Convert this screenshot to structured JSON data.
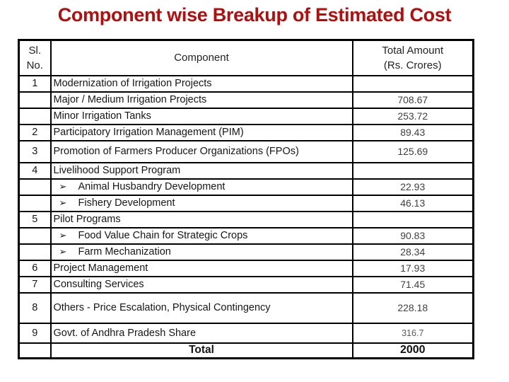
{
  "title": "Component wise Breakup of Estimated Cost",
  "colors": {
    "title_red": "#b30d0d",
    "border_black": "#000000",
    "body_text": "#161616",
    "amount_gray": "#3f3f3f",
    "background": "#ffffff"
  },
  "table": {
    "header": {
      "sl_no": "Sl.\nNo.",
      "component": "Component",
      "amount": "Total Amount\n(Rs. Crores)"
    },
    "rows": [
      {
        "no": "1",
        "bullet": "",
        "component": "Modernization of Irrigation Projects",
        "amount": ""
      },
      {
        "no": "",
        "bullet": "",
        "component": "Major / Medium Irrigation Projects",
        "amount": "708.67"
      },
      {
        "no": "",
        "bullet": "",
        "component": "Minor Irrigation Tanks",
        "amount": "253.72"
      },
      {
        "no": "2",
        "bullet": "",
        "component": "Participatory Irrigation Management (PIM)",
        "amount": "89.43"
      },
      {
        "no": "3",
        "bullet": "",
        "component": "Promotion of Farmers Producer Organizations (FPOs)",
        "amount": "125.69"
      },
      {
        "no": "4",
        "bullet": "",
        "component": "Livelihood Support Program",
        "amount": ""
      },
      {
        "no": "",
        "bullet": "➢",
        "component": "Animal Husbandry Development",
        "amount": "22.93"
      },
      {
        "no": "",
        "bullet": "➢",
        "component": "Fishery Development",
        "amount": "46.13"
      },
      {
        "no": "5",
        "bullet": "",
        "component": "Pilot Programs",
        "amount": ""
      },
      {
        "no": "",
        "bullet": "➢",
        "component": "Food Value Chain for Strategic Crops",
        "amount": "90.83"
      },
      {
        "no": "",
        "bullet": "➢",
        "component": "Farm Mechanization",
        "amount": "28.34"
      },
      {
        "no": "6",
        "bullet": "",
        "component": "Project Management",
        "amount": "17.93"
      },
      {
        "no": "7",
        "bullet": "",
        "component": "Consulting Services",
        "amount": "71.45"
      },
      {
        "no": "8",
        "bullet": "",
        "component": "Others - Price Escalation, Physical Contingency",
        "amount": "228.18"
      },
      {
        "no": "9",
        "bullet": "",
        "component": "Govt. of Andhra Pradesh Share",
        "amount": "316.7"
      },
      {
        "no": "",
        "bullet": "",
        "component": "Total",
        "amount": "2000"
      }
    ]
  }
}
